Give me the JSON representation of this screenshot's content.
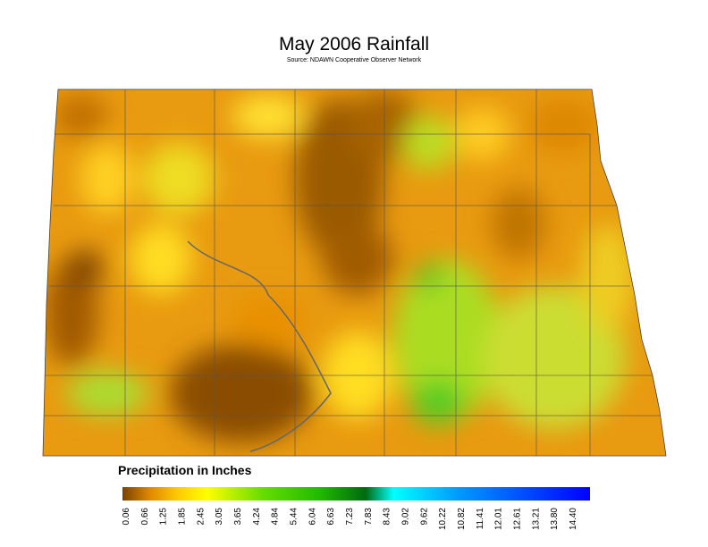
{
  "map": {
    "title": "May 2006 Rainfall",
    "source": "Source: NDAWN Cooperative Observer Network",
    "legend": {
      "title": "Precipitation in Inches",
      "ticks": [
        "0.06",
        "0.66",
        "1.25",
        "1.85",
        "2.45",
        "3.05",
        "3.65",
        "4.24",
        "4.84",
        "5.44",
        "6.04",
        "6.63",
        "7.23",
        "7.83",
        "8.43",
        "9.02",
        "9.62",
        "10.22",
        "10.82",
        "11.41",
        "12.01",
        "12.61",
        "13.21",
        "13.80",
        "14.40"
      ]
    }
  }
}
